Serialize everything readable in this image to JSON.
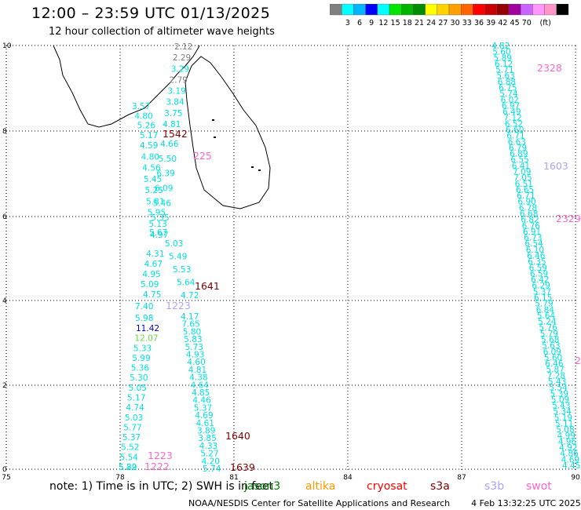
{
  "header": {
    "title": "12:00 – 23:59 UTC 01/13/2025",
    "subtitle": "12 hour collection of altimeter wave heights"
  },
  "legend": {
    "colors": [
      "#808080",
      "#00ffff",
      "#00b4ff",
      "#0000ff",
      "#00ffff",
      "#00e600",
      "#00b400",
      "#008c00",
      "#ffff00",
      "#ffd200",
      "#ffa000",
      "#ff6400",
      "#ff0000",
      "#c80000",
      "#960000",
      "#a000a0",
      "#c864ff",
      "#ff96ff",
      "#ff96c8",
      "#000000"
    ],
    "labels": [
      "3",
      "6",
      "9",
      "12",
      "15",
      "18",
      "21",
      "24",
      "27",
      "30",
      "33",
      "36",
      "39",
      "42",
      "45",
      "70"
    ],
    "unit": "(ft)"
  },
  "axes": {
    "x_ticks": [
      "75",
      "78",
      "81",
      "84",
      "87",
      "90"
    ],
    "y_ticks": [
      "0",
      "2",
      "4",
      "6",
      "8",
      "10"
    ]
  },
  "tracks": {
    "track_a": {
      "readings": [
        "2.12",
        "2.29",
        "3.29",
        "2.79",
        "3.19",
        "3.84",
        "3.75",
        "4.81",
        "4.66",
        "5.50",
        "6.39",
        "6.09",
        "5.46",
        "5.35",
        "5.67",
        "5.03",
        "5.49",
        "5.53",
        "5.64",
        "4.72",
        "4.17",
        "7.65",
        "5.80",
        "5.83",
        "5.73",
        "4.93",
        "4.60",
        "4.81",
        "4.38",
        "4.64",
        "4.85",
        "4.46",
        "5.37",
        "4.69",
        "4.61",
        "3.89",
        "3.85",
        "4.33",
        "5.27",
        "4.20",
        "5.74"
      ]
    },
    "track_b": {
      "readings": [
        "3.57",
        "4.80",
        "5.26",
        "5.17",
        "4.59",
        "4.80",
        "4.56",
        "5.45",
        "5.25",
        "5.81",
        "5.95",
        "5.13",
        "4.97",
        "4.31",
        "4.67",
        "4.95",
        "5.09",
        "4.75",
        "7.40",
        "5.98",
        "11.42",
        "12.07",
        "5.33",
        "5.99",
        "5.36",
        "5.30",
        "5.05",
        "5.17",
        "4.74",
        "5.03",
        "5.77",
        "5.37",
        "5.52",
        "5.54",
        "5.22",
        "5.89"
      ]
    },
    "track_c": {
      "readings": [
        "4.82",
        "5.60",
        "5.89",
        "6.12",
        "5.71",
        "5.63",
        "6.88",
        "6.75",
        "5.74",
        "6.02",
        "6.97",
        "6.49",
        "7.12",
        "6.52",
        "6.60",
        "6.71",
        "6.63",
        "6.79",
        "6.89",
        "6.55",
        "6.41",
        "7.09",
        "7.05",
        "6.51",
        "6.65",
        "6.71",
        "6.90",
        "6.78",
        "6.68",
        "6.82",
        "6.76",
        "6.91",
        "6.73",
        "6.54",
        "6.10",
        "6.46",
        "6.35",
        "6.59",
        "6.59",
        "6.42",
        "6.29",
        "5.37",
        "6.15",
        "5.79",
        "6.84",
        "5.64",
        "5.24",
        "5.76",
        "5.79",
        "5.68",
        "5.63",
        "6.09",
        "5.60",
        "6.46",
        "5.87",
        "7.28",
        "5.43",
        "5.54",
        "5.39",
        "5.09",
        "5.43",
        "5.34",
        "5.19",
        "5.11",
        "5.08",
        "4.99",
        "4.96",
        "4.92",
        "4.86",
        "4.69",
        "4.45"
      ]
    },
    "pass_labels": [
      {
        "text": "2328",
        "color": "#ff66cc"
      },
      {
        "text": "1603",
        "color": "#b0a0ff"
      },
      {
        "text": "2329",
        "color": "#ff66cc"
      },
      {
        "text": "1542",
        "color": "#800000"
      },
      {
        "text": "225",
        "color": "#ff66cc"
      },
      {
        "text": "1641",
        "color": "#800000"
      },
      {
        "text": "1223",
        "color": "#b0a0ff"
      },
      {
        "text": "1640",
        "color": "#800000"
      },
      {
        "text": "1223",
        "color": "#ff66cc"
      },
      {
        "text": "1222",
        "color": "#ff66cc"
      },
      {
        "text": "1639",
        "color": "#800000"
      },
      {
        "text": "2",
        "color": "#ff66cc"
      }
    ]
  },
  "note": "note:  1) Time is in UTC; 2) SWH is in feet",
  "missions": [
    {
      "name": "jason3",
      "color": "#008000"
    },
    {
      "name": "altika",
      "color": "#ff9900"
    },
    {
      "name": "cryosat",
      "color": "#ff0000"
    },
    {
      "name": "s3a",
      "color": "#800000"
    },
    {
      "name": "s3b",
      "color": "#b0a0ff"
    },
    {
      "name": "swot",
      "color": "#ff66cc"
    }
  ],
  "credit": "NOAA/NESDIS Center for Satellite Applications and Research",
  "timestamp": "4 Feb 13:32:25 UTC 2025"
}
